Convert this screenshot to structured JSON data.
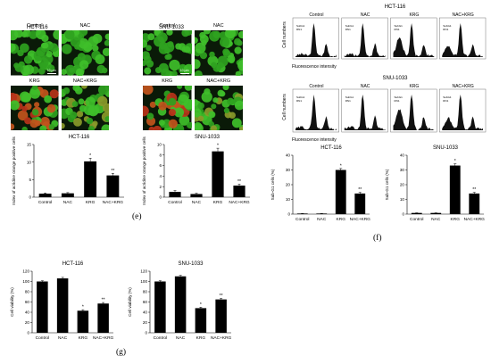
{
  "panel_e": {
    "letter": "(e)",
    "left": {
      "cell_line": "HCT-116",
      "images": [
        {
          "label": "Control",
          "scale": "10 μm",
          "kind": "green"
        },
        {
          "label": "NAC",
          "kind": "green"
        },
        {
          "label": "KRG",
          "kind": "redgreen"
        },
        {
          "label": "NAC+KRG",
          "kind": "green2"
        }
      ]
    },
    "right": {
      "cell_line": "SNU-1033",
      "images": [
        {
          "label": "Control",
          "scale": "10 μm",
          "kind": "green"
        },
        {
          "label": "NAC",
          "kind": "green"
        },
        {
          "label": "KRG",
          "kind": "redgreen"
        },
        {
          "label": "NAC+KRG",
          "kind": "green2"
        }
      ]
    }
  },
  "panel_f": {
    "letter": "(f)",
    "top": {
      "cell_line": "HCT-116",
      "ylabel": "Cell numbers",
      "xlabel": "Fluorescence intensity",
      "groups": [
        "Control",
        "NAC",
        "KRG",
        "NAC+KRG"
      ],
      "gate": [
        "SubG1",
        "RN1"
      ]
    },
    "bottom": {
      "cell_line": "SNU-1033",
      "ylabel": "Cell numbers",
      "xlabel": "Fluorescence intensity",
      "groups": [
        "Control",
        "NAC",
        "KRG",
        "NAC+KRG"
      ],
      "gate": [
        "SubG1",
        "RN1"
      ]
    }
  },
  "panel_g": {
    "letter": "(g)"
  },
  "chart_data": [
    {
      "id": "e-hct",
      "type": "bar",
      "title": "HCT-116",
      "ylabel": "Index of acridine orange positive cells",
      "categories": [
        "Control",
        "NAC",
        "KRG",
        "NAC+KRG"
      ],
      "values": [
        1.0,
        1.1,
        10.2,
        6.2
      ],
      "errors": [
        0.2,
        0.2,
        0.9,
        0.6
      ],
      "marks": [
        "",
        "",
        "*",
        "**"
      ],
      "ylim": [
        0,
        15
      ],
      "yticks": [
        "0",
        "5",
        "10",
        "15"
      ]
    },
    {
      "id": "e-snu",
      "type": "bar",
      "title": "SNU-1033",
      "ylabel": "Index of acridine orange positive cells",
      "categories": [
        "Control",
        "NAC",
        "KRG",
        "NAC+KRG"
      ],
      "values": [
        1.0,
        0.6,
        8.7,
        2.2
      ],
      "errors": [
        0.25,
        0.15,
        0.6,
        0.3
      ],
      "marks": [
        "",
        "",
        "*",
        "**"
      ],
      "ylim": [
        0,
        10
      ],
      "yticks": [
        "0",
        "2",
        "4",
        "6",
        "8",
        "10"
      ]
    },
    {
      "id": "f-hct",
      "type": "bar",
      "title": "HCT-116",
      "ylabel": "Sub-G1 cells (%)",
      "categories": [
        "Control",
        "NAC",
        "KRG",
        "NAC+KRG"
      ],
      "values": [
        0.4,
        0.4,
        30.0,
        14.0
      ],
      "errors": [
        0.1,
        0.1,
        1.0,
        0.8
      ],
      "marks": [
        "",
        "",
        "*",
        "**"
      ],
      "ylim": [
        0,
        40
      ],
      "yticks": [
        "0",
        "10",
        "20",
        "30",
        "40"
      ]
    },
    {
      "id": "f-snu",
      "type": "bar",
      "title": "SNU-1033",
      "ylabel": "Sub-G1 cells (%)",
      "categories": [
        "Control",
        "NAC",
        "KRG",
        "NAC+KRG"
      ],
      "values": [
        0.8,
        0.8,
        33.0,
        14.0
      ],
      "errors": [
        0.1,
        0.1,
        1.2,
        0.8
      ],
      "marks": [
        "",
        "",
        "*",
        "**"
      ],
      "ylim": [
        0,
        40
      ],
      "yticks": [
        "0",
        "10",
        "20",
        "30",
        "40"
      ]
    },
    {
      "id": "g-hct",
      "type": "bar",
      "title": "HCT-116",
      "ylabel": "Cell viability (%)",
      "categories": [
        "Control",
        "NAC",
        "KRG",
        "NAC+KRG"
      ],
      "values": [
        100,
        106,
        43,
        57
      ],
      "errors": [
        1.5,
        2.0,
        2.0,
        2.0
      ],
      "marks": [
        "",
        "",
        "*",
        "**"
      ],
      "ylim": [
        0,
        120
      ],
      "yticks": [
        "0",
        "20",
        "40",
        "60",
        "80",
        "100",
        "120"
      ]
    },
    {
      "id": "g-snu",
      "type": "bar",
      "title": "SNU-1033",
      "ylabel": "Cell viability (%)",
      "categories": [
        "Control",
        "NAC",
        "KRG",
        "NAC+KRG"
      ],
      "values": [
        100,
        110,
        48,
        65
      ],
      "errors": [
        1.5,
        2.0,
        2.0,
        2.0
      ],
      "marks": [
        "",
        "",
        "*",
        "**"
      ],
      "ylim": [
        0,
        120
      ],
      "yticks": [
        "0",
        "20",
        "40",
        "60",
        "80",
        "100",
        "120"
      ]
    }
  ]
}
